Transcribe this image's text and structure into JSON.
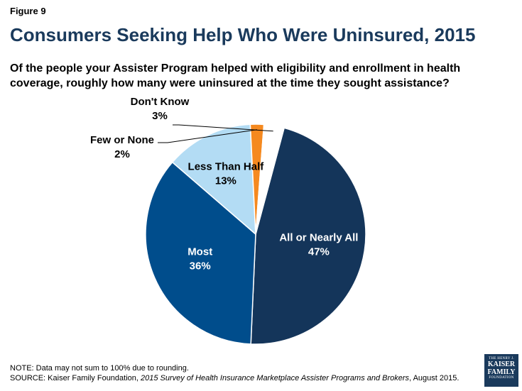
{
  "figure_label": "Figure 9",
  "note": "NOTE: Data may not sum to 100% due to rounding.",
  "source": {
    "prefix": "SOURCE: Kaiser Family Foundation, ",
    "title": "2015 Survey of Health Insurance Marketplace Assister Programs and Brokers",
    "suffix": ", August 2015."
  },
  "logo": {
    "line1": "THE HENRY J.",
    "line2": "KAISER",
    "line3": "FAMILY",
    "line4": "FOUNDATION"
  },
  "chart_data": {
    "type": "pie",
    "title": "Consumers Seeking Help Who Were Uninsured, 2015",
    "subtitle": "Of the people your Assister Program helped with eligibility and enrollment in health coverage, roughly how many were uninsured at the time they sought assistance?",
    "slices": [
      {
        "label": "All or Nearly All",
        "value": 47,
        "display": "47%",
        "color": "#14355a",
        "label_color": "#ffffff"
      },
      {
        "label": "Most",
        "value": 36,
        "display": "36%",
        "color": "#004d8c",
        "label_color": "#ffffff"
      },
      {
        "label": "Less Than Half",
        "value": 13,
        "display": "13%",
        "color": "#b3dcf4",
        "label_color": "#000000"
      },
      {
        "label": "Few or None",
        "value": 2,
        "display": "2%",
        "color": "#f5891f",
        "label_color": "#000000"
      },
      {
        "label": "Don't Know",
        "value": 3,
        "display": "3%",
        "color": "#ffffff",
        "label_color": "#000000"
      }
    ]
  }
}
